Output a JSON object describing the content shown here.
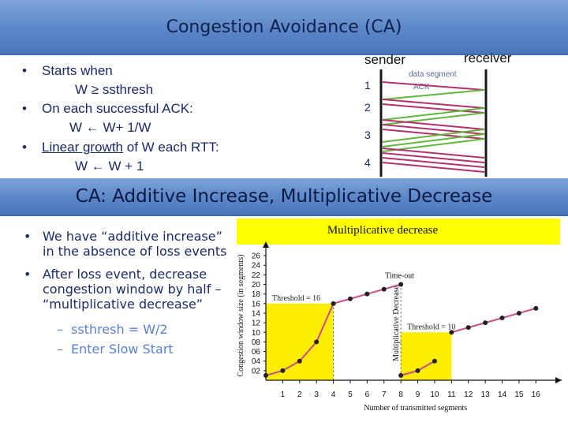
{
  "slide_top": {
    "title": "Congestion Avoidance (CA)",
    "bullets": [
      {
        "text": "Starts when",
        "formula": "W ≥ ssthresh"
      },
      {
        "text": "On each successful ACK:",
        "formula": "W ← W+ 1/W"
      },
      {
        "prefix_underlined": "Linear growth",
        "text": " of W each RTT:",
        "formula": "W ← W + 1"
      }
    ],
    "bullet_marker": "•"
  },
  "timing_diagram": {
    "sender_label": "sender",
    "receiver_label": "receiver",
    "round_labels": [
      "1",
      "2",
      "3",
      "4"
    ],
    "data_segment_label": "data segment",
    "ack_label": "ACK",
    "colors": {
      "data": "#b5306d",
      "ack": "#5fb83a",
      "timeline": "#1a1a1a"
    }
  },
  "slide_bottom": {
    "title": "CA: Additive Increase, Multiplicative Decrease",
    "bullets": [
      "We have “additive increase” in the absence of loss events",
      "After loss event, decrease congestion window by half – “multiplicative decrease”"
    ],
    "sub_bullets": [
      "ssthresh = W/2",
      "Enter Slow Start"
    ],
    "dash_marker": "–"
  },
  "figure": {
    "banner_label": "Multiplicative decrease",
    "banner_color": "#ffff00"
  },
  "chart_data": {
    "type": "line",
    "xlabel": "Number of transmitted segments",
    "ylabel": "Congestion window size (in segments)",
    "x_ticks": [
      "1",
      "2",
      "3",
      "4",
      "5",
      "6",
      "7",
      "8",
      "9",
      "10",
      "11",
      "12",
      "13",
      "14",
      "15",
      "16"
    ],
    "y_ticks": [
      "02",
      "04",
      "06",
      "08",
      "10",
      "12",
      "14",
      "16",
      "18",
      "20",
      "22",
      "24",
      "26"
    ],
    "xlim": [
      0,
      16.5
    ],
    "ylim": [
      0,
      27
    ],
    "series": [
      {
        "name": "slow start 1",
        "x": [
          0,
          1,
          2,
          3,
          4
        ],
        "y": [
          1,
          2,
          4,
          8,
          16
        ]
      },
      {
        "name": "congestion avoidance 1",
        "x": [
          4,
          5,
          6,
          7,
          8
        ],
        "y": [
          16,
          17,
          18,
          19,
          20
        ]
      },
      {
        "name": "slow start 2",
        "x": [
          8,
          9,
          10
        ],
        "y": [
          1,
          2,
          4
        ]
      },
      {
        "name": "congestion avoidance 2",
        "x": [
          11,
          12,
          13,
          14,
          15,
          16
        ],
        "y": [
          10,
          11,
          12,
          13,
          14,
          15
        ]
      }
    ],
    "threshold_regions": [
      {
        "label": "Threshold = 16",
        "x_start": 0,
        "x_end": 4,
        "value": 16
      },
      {
        "label": "Threshold = 10",
        "x_start": 8,
        "x_end": 11,
        "value": 10
      }
    ],
    "annotations": [
      {
        "text": "Time-out",
        "x": 8,
        "y": 20
      }
    ],
    "colors": {
      "line": "#d04a8a",
      "marker": "#222222",
      "region": "#ffee00",
      "dotted": "#555555"
    }
  }
}
